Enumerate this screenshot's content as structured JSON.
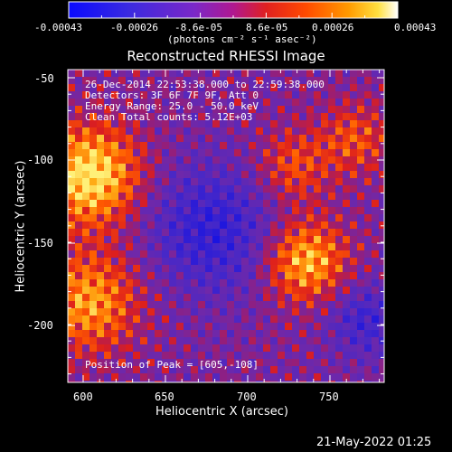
{
  "colorbar": {
    "tick_labels": [
      "-0.00043",
      "-0.00026",
      "-8.6e-05",
      "8.6e-05",
      "0.00026",
      "0.00043"
    ],
    "unit_label": "(photons cm⁻² s⁻¹ asec⁻²)"
  },
  "plot": {
    "title": "Reconstructed RHESSI Image",
    "xlabel": "Heliocentric X (arcsec)",
    "ylabel": "Heliocentric Y (arcsec)",
    "x_ticks": [
      "600",
      "650",
      "700",
      "750"
    ],
    "y_ticks": [
      "-50",
      "-100",
      "-150",
      "-200"
    ],
    "info_lines": [
      "26-Dec-2014 22:53:38.000 to 22:59:38.000",
      "Detectors: 3F 6F 7F 9F, Att 0",
      "Energy Range: 25.0 - 50.0 keV",
      "Clean    Total counts: 5.12E+03"
    ],
    "peak_label": "Position of Peak = [605,-108]"
  },
  "footer": {
    "timestamp": "21-May-2022 01:25"
  }
}
